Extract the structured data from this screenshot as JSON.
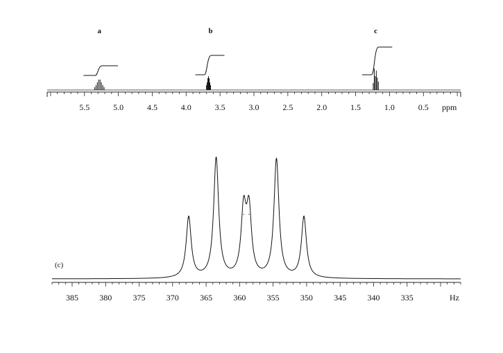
{
  "chart_data": [
    {
      "type": "line",
      "description_kind": "1H NMR spectrum",
      "xlabel": "ppm",
      "x_reversed": true,
      "xlim": [
        6.05,
        -0.05
      ],
      "xticks": [
        "5.5",
        "5.0",
        "4.5",
        "4.0",
        "3.5",
        "3.0",
        "2.5",
        "2.0",
        "1.5",
        "1.0",
        "0.5"
      ],
      "tick_values": [
        5.5,
        5.0,
        4.5,
        4.0,
        3.5,
        3.0,
        2.5,
        2.0,
        1.5,
        1.0,
        0.5
      ],
      "signals": [
        {
          "label": "a",
          "center_ppm": 5.28,
          "lines_ppm": [
            5.35,
            5.33,
            5.31,
            5.29,
            5.27,
            5.25,
            5.23,
            5.21
          ],
          "relative_heights": [
            0.2,
            0.35,
            0.55,
            0.75,
            0.75,
            0.55,
            0.35,
            0.2
          ],
          "integral_step": 1
        },
        {
          "label": "b",
          "center_ppm": 3.67,
          "lines_ppm": [
            3.7,
            3.69,
            3.68,
            3.67,
            3.66,
            3.65,
            3.64
          ],
          "relative_heights": [
            0.35,
            0.55,
            0.85,
            1.0,
            0.85,
            0.55,
            0.35
          ],
          "integral_step": 1.1
        },
        {
          "label": "c",
          "center_ppm": 1.2,
          "lines_ppm": [
            1.24,
            1.225,
            1.21,
            1.195,
            1.18,
            1.165
          ],
          "relative_heights": [
            0.5,
            1.55,
            1.0,
            1.4,
            0.9,
            0.6
          ],
          "integral_step": 3
        }
      ]
    },
    {
      "type": "line",
      "description_kind": "expanded multiplet",
      "panel_label": "(c)",
      "xlabel": "Hz",
      "x_reversed": true,
      "xlim": [
        388,
        327
      ],
      "xticks": [
        "385",
        "380",
        "375",
        "370",
        "365",
        "360",
        "355",
        "350",
        "345",
        "340",
        "335"
      ],
      "tick_values": [
        385,
        380,
        375,
        370,
        365,
        360,
        355,
        350,
        345,
        340,
        335
      ],
      "peaks": [
        {
          "x_hz": 367.6,
          "height": 0.51
        },
        {
          "x_hz": 363.5,
          "height": 1.0
        },
        {
          "x_hz": 359.4,
          "height": 0.54
        },
        {
          "x_hz": 358.6,
          "height": 0.54
        },
        {
          "x_hz": 354.5,
          "height": 0.99
        },
        {
          "x_hz": 350.4,
          "height": 0.51
        }
      ]
    }
  ]
}
